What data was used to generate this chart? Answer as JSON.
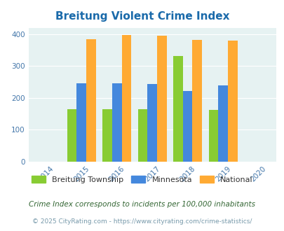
{
  "title": "Breitung Violent Crime Index",
  "years": [
    2015,
    2016,
    2017,
    2018,
    2019
  ],
  "breitung": [
    165,
    165,
    165,
    332,
    162
  ],
  "minnesota": [
    246,
    246,
    244,
    222,
    239
  ],
  "national": [
    384,
    398,
    394,
    381,
    379
  ],
  "bar_colors": {
    "breitung": "#88cc33",
    "minnesota": "#4488dd",
    "national": "#ffaa33"
  },
  "xlim": [
    2013.5,
    2020.5
  ],
  "ylim": [
    0,
    420
  ],
  "yticks": [
    0,
    100,
    200,
    300,
    400
  ],
  "xticks": [
    2014,
    2015,
    2016,
    2017,
    2018,
    2019,
    2020
  ],
  "bar_width": 0.27,
  "bg_color": "#e6f2f2",
  "title_color": "#1a6aaa",
  "tick_color": "#4477aa",
  "legend_labels": [
    "Breitung Township",
    "Minnesota",
    "National"
  ],
  "legend_label_color": "#333333",
  "footnote1": "Crime Index corresponds to incidents per 100,000 inhabitants",
  "footnote2": "© 2025 CityRating.com - https://www.cityrating.com/crime-statistics/",
  "footnote1_color": "#336633",
  "footnote2_color": "#7799aa"
}
